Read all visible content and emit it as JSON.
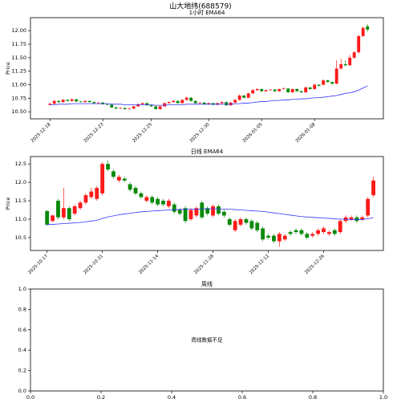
{
  "title": "山大地纬(688579)",
  "chart_data": [
    {
      "type": "candlestick",
      "title": "1小时 EMA64",
      "ylabel": "Price",
      "up_color": "#ff1a1a",
      "down_color": "#0a8a0a",
      "ema_color": "#3333ff",
      "xlim": [
        -4.4,
        75.6
      ],
      "ylim": [
        10.37,
        12.24
      ],
      "xticks": [
        {
          "value": 0,
          "label": "2025-12-18"
        },
        {
          "value": 12,
          "label": "2025-12-23"
        },
        {
          "value": 23,
          "label": "2025-12-25"
        },
        {
          "value": 36,
          "label": "2025-12-30"
        },
        {
          "value": 48,
          "label": "2026-01-05"
        },
        {
          "value": 60,
          "label": "2026-01-08"
        }
      ],
      "yticks": [
        {
          "value": 10.5,
          "label": "10.50"
        },
        10.75,
        {
          "value": 11,
          "label": "11.00"
        },
        11.25,
        {
          "value": 11.5,
          "label": "11.50"
        },
        11.75,
        {
          "value": 12,
          "label": "12.00"
        }
      ],
      "ohlc": [
        [
          10.63,
          10.66,
          10.62,
          10.65
        ],
        [
          10.65,
          10.72,
          10.64,
          10.7
        ],
        [
          10.7,
          10.71,
          10.66,
          10.68
        ],
        [
          10.68,
          10.74,
          10.67,
          10.72
        ],
        [
          10.72,
          10.73,
          10.69,
          10.7
        ],
        [
          10.7,
          10.75,
          10.69,
          10.73
        ],
        [
          10.73,
          10.74,
          10.68,
          10.69
        ],
        [
          10.69,
          10.7,
          10.67,
          10.68
        ],
        [
          10.68,
          10.71,
          10.67,
          10.7
        ],
        [
          10.7,
          10.71,
          10.67,
          10.68
        ],
        [
          10.68,
          10.69,
          10.65,
          10.66
        ],
        [
          10.66,
          10.68,
          10.65,
          10.67
        ],
        [
          10.67,
          10.68,
          10.63,
          10.64
        ],
        [
          10.64,
          10.65,
          10.62,
          10.63
        ],
        [
          10.63,
          10.64,
          10.57,
          10.58
        ],
        [
          10.58,
          10.59,
          10.55,
          10.56
        ],
        [
          10.56,
          10.58,
          10.55,
          10.57
        ],
        [
          10.57,
          10.58,
          10.54,
          10.55
        ],
        [
          10.55,
          10.57,
          10.54,
          10.56
        ],
        [
          10.56,
          10.61,
          10.55,
          10.6
        ],
        [
          10.6,
          10.65,
          10.59,
          10.64
        ],
        [
          10.64,
          10.67,
          10.63,
          10.66
        ],
        [
          10.66,
          10.67,
          10.61,
          10.62
        ],
        [
          10.62,
          10.63,
          10.59,
          10.6
        ],
        [
          10.6,
          10.61,
          10.54,
          10.55
        ],
        [
          10.55,
          10.61,
          10.54,
          10.6
        ],
        [
          10.6,
          10.67,
          10.59,
          10.66
        ],
        [
          10.66,
          10.69,
          10.65,
          10.68
        ],
        [
          10.68,
          10.72,
          10.67,
          10.7
        ],
        [
          10.7,
          10.71,
          10.65,
          10.66
        ],
        [
          10.66,
          10.73,
          10.65,
          10.72
        ],
        [
          10.72,
          10.78,
          10.71,
          10.76
        ],
        [
          10.76,
          10.77,
          10.69,
          10.7
        ],
        [
          10.7,
          10.71,
          10.65,
          10.66
        ],
        [
          10.66,
          10.68,
          10.65,
          10.67
        ],
        [
          10.67,
          10.68,
          10.63,
          10.64
        ],
        [
          10.64,
          10.67,
          10.63,
          10.66
        ],
        [
          10.66,
          10.67,
          10.62,
          10.63
        ],
        [
          10.63,
          10.67,
          10.62,
          10.66
        ],
        [
          10.66,
          10.69,
          10.65,
          10.68
        ],
        [
          10.68,
          10.69,
          10.61,
          10.62
        ],
        [
          10.62,
          10.68,
          10.61,
          10.67
        ],
        [
          10.67,
          10.73,
          10.66,
          10.72
        ],
        [
          10.72,
          10.82,
          10.71,
          10.8
        ],
        [
          10.8,
          10.81,
          10.75,
          10.76
        ],
        [
          10.76,
          10.85,
          10.75,
          10.84
        ],
        [
          10.84,
          10.92,
          10.83,
          10.9
        ],
        [
          10.9,
          10.94,
          10.89,
          10.92
        ],
        [
          10.92,
          10.93,
          10.87,
          10.88
        ],
        [
          10.88,
          10.91,
          10.87,
          10.9
        ],
        [
          10.9,
          10.92,
          10.89,
          10.91
        ],
        [
          10.91,
          10.92,
          10.87,
          10.88
        ],
        [
          10.88,
          10.93,
          10.87,
          10.92
        ],
        [
          10.92,
          10.95,
          10.91,
          10.93
        ],
        [
          10.93,
          10.94,
          10.85,
          10.86
        ],
        [
          10.86,
          10.93,
          10.85,
          10.92
        ],
        [
          10.92,
          10.93,
          10.87,
          10.88
        ],
        [
          10.88,
          10.89,
          10.85,
          10.86
        ],
        [
          10.86,
          10.97,
          10.85,
          10.95
        ],
        [
          10.95,
          10.96,
          10.91,
          10.92
        ],
        [
          10.92,
          11.02,
          10.91,
          11.0
        ],
        [
          11.0,
          11.01,
          10.97,
          10.98
        ],
        [
          11.0,
          11.1,
          10.99,
          11.08
        ],
        [
          11.08,
          11.09,
          11.04,
          11.05
        ],
        [
          11.05,
          11.06,
          11.0,
          11.02
        ],
        [
          11.02,
          11.45,
          11.01,
          11.3
        ],
        [
          11.3,
          11.48,
          11.28,
          11.38
        ],
        [
          11.38,
          11.45,
          11.34,
          11.36
        ],
        [
          11.36,
          11.55,
          11.35,
          11.5
        ],
        [
          11.5,
          11.62,
          11.48,
          11.6
        ],
        [
          11.6,
          11.92,
          11.58,
          11.9
        ],
        [
          11.9,
          12.08,
          11.88,
          12.05
        ],
        [
          12.08,
          12.12,
          11.98,
          12.02
        ]
      ],
      "ema_values": [
        10.63,
        10.63,
        10.64,
        10.64,
        10.64,
        10.65,
        10.65,
        10.65,
        10.65,
        10.65,
        10.65,
        10.65,
        10.65,
        10.65,
        10.64,
        10.64,
        10.64,
        10.63,
        10.63,
        10.63,
        10.63,
        10.63,
        10.63,
        10.63,
        10.62,
        10.62,
        10.62,
        10.63,
        10.63,
        10.63,
        10.63,
        10.64,
        10.64,
        10.64,
        10.64,
        10.64,
        10.64,
        10.64,
        10.64,
        10.64,
        10.64,
        10.64,
        10.65,
        10.65,
        10.66,
        10.66,
        10.67,
        10.68,
        10.69,
        10.69,
        10.7,
        10.71,
        10.71,
        10.72,
        10.72,
        10.73,
        10.73,
        10.74,
        10.74,
        10.75,
        10.76,
        10.76,
        10.77,
        10.78,
        10.79,
        10.8,
        10.82,
        10.84,
        10.85,
        10.87,
        10.9,
        10.94,
        10.98
      ]
    },
    {
      "type": "candlestick",
      "title": "日线 EMA64",
      "ylabel": "Price",
      "up_color": "#ff1a1a",
      "down_color": "#0a8a0a",
      "ema_color": "#3333ff",
      "xlim": [
        -3.0,
        60.8
      ],
      "ylim": [
        10.15,
        12.7
      ],
      "xticks": [
        {
          "value": 0,
          "label": "2025-10-17"
        },
        {
          "value": 10,
          "label": "2025-10-31"
        },
        {
          "value": 20,
          "label": "2025-11-14"
        },
        {
          "value": 30,
          "label": "2025-11-28"
        },
        {
          "value": 40,
          "label": "2025-12-12"
        },
        {
          "value": 50,
          "label": "2025-12-26"
        }
      ],
      "yticks": [
        10.5,
        {
          "value": 11,
          "label": "11.0"
        },
        11.5,
        {
          "value": 12,
          "label": "12.0"
        },
        12.5
      ],
      "ohlc": [
        [
          11.22,
          11.25,
          10.82,
          10.85
        ],
        [
          10.95,
          11.12,
          10.92,
          11.1
        ],
        [
          11.5,
          11.55,
          11.0,
          11.05
        ],
        [
          11.05,
          11.85,
          11.0,
          11.3
        ],
        [
          11.3,
          11.35,
          10.95,
          11.0
        ],
        [
          11.15,
          11.4,
          11.1,
          11.35
        ],
        [
          11.3,
          11.5,
          11.25,
          11.45
        ],
        [
          11.45,
          11.7,
          11.4,
          11.65
        ],
        [
          11.6,
          11.85,
          11.55,
          11.75
        ],
        [
          11.55,
          11.9,
          11.5,
          11.85
        ],
        [
          11.7,
          12.55,
          11.65,
          12.5
        ],
        [
          12.5,
          12.6,
          12.3,
          12.35
        ],
        [
          12.3,
          12.35,
          12.1,
          12.15
        ],
        [
          12.05,
          12.2,
          12.0,
          12.15
        ],
        [
          12.1,
          12.15,
          12.0,
          12.05
        ],
        [
          11.95,
          12.0,
          11.75,
          11.8
        ],
        [
          11.85,
          11.9,
          11.65,
          11.7
        ],
        [
          11.7,
          11.75,
          11.55,
          11.6
        ],
        [
          11.5,
          11.65,
          11.45,
          11.6
        ],
        [
          11.6,
          11.65,
          11.4,
          11.45
        ],
        [
          11.55,
          11.6,
          11.35,
          11.4
        ],
        [
          11.5,
          11.55,
          11.35,
          11.4
        ],
        [
          11.35,
          11.55,
          11.3,
          11.5
        ],
        [
          11.4,
          11.45,
          11.15,
          11.2
        ],
        [
          11.25,
          11.3,
          11.1,
          11.15
        ],
        [
          11.3,
          11.35,
          10.9,
          10.95
        ],
        [
          11.0,
          11.3,
          10.95,
          11.25
        ],
        [
          11.1,
          11.35,
          11.05,
          11.3
        ],
        [
          11.45,
          11.5,
          11.0,
          11.05
        ],
        [
          11.3,
          11.35,
          11.1,
          11.15
        ],
        [
          11.1,
          11.4,
          11.05,
          11.35
        ],
        [
          11.35,
          11.4,
          11.1,
          11.15
        ],
        [
          11.2,
          11.25,
          11.05,
          11.1
        ],
        [
          11.0,
          11.05,
          10.8,
          10.85
        ],
        [
          10.7,
          11.0,
          10.65,
          10.95
        ],
        [
          10.85,
          11.05,
          10.8,
          11.0
        ],
        [
          11.0,
          11.05,
          10.85,
          10.9
        ],
        [
          10.95,
          11.0,
          10.7,
          10.75
        ],
        [
          10.9,
          10.95,
          10.65,
          10.7
        ],
        [
          10.75,
          10.8,
          10.4,
          10.45
        ],
        [
          10.55,
          10.6,
          10.45,
          10.5
        ],
        [
          10.55,
          10.6,
          10.35,
          10.4
        ],
        [
          10.4,
          10.65,
          10.25,
          10.6
        ],
        [
          10.45,
          10.6,
          10.4,
          10.55
        ],
        [
          10.65,
          10.7,
          10.55,
          10.6
        ],
        [
          10.7,
          10.75,
          10.6,
          10.65
        ],
        [
          10.7,
          10.75,
          10.55,
          10.6
        ],
        [
          10.6,
          10.65,
          10.45,
          10.5
        ],
        [
          10.55,
          10.65,
          10.5,
          10.6
        ],
        [
          10.6,
          10.75,
          10.55,
          10.7
        ],
        [
          10.65,
          10.8,
          10.6,
          10.75
        ],
        [
          10.6,
          10.7,
          10.55,
          10.65
        ],
        [
          10.7,
          10.75,
          10.55,
          10.6
        ],
        [
          10.65,
          11.0,
          10.6,
          10.95
        ],
        [
          10.95,
          11.1,
          10.9,
          11.05
        ],
        [
          11.0,
          11.1,
          10.95,
          11.05
        ],
        [
          11.05,
          11.1,
          10.9,
          10.95
        ],
        [
          11.0,
          11.1,
          10.95,
          11.05
        ],
        [
          11.1,
          11.6,
          11.05,
          11.55
        ],
        [
          11.65,
          12.15,
          11.6,
          12.05
        ]
      ],
      "ema_values": [
        10.85,
        10.86,
        10.87,
        10.88,
        10.89,
        10.9,
        10.91,
        10.93,
        10.95,
        10.97,
        11.02,
        11.06,
        11.09,
        11.12,
        11.14,
        11.16,
        11.18,
        11.2,
        11.21,
        11.22,
        11.23,
        11.24,
        11.25,
        11.26,
        11.26,
        11.27,
        11.27,
        11.27,
        11.28,
        11.28,
        11.28,
        11.28,
        11.27,
        11.27,
        11.26,
        11.25,
        11.24,
        11.23,
        11.22,
        11.21,
        11.19,
        11.17,
        11.15,
        11.13,
        11.11,
        11.09,
        11.07,
        11.06,
        11.05,
        11.04,
        11.03,
        11.02,
        11.01,
        11.0,
        11.0,
        10.99,
        10.99,
        10.99,
        11.01,
        11.04
      ]
    },
    {
      "type": "empty",
      "title": "周线",
      "annotation": "周线数据不足",
      "xlim": [
        0,
        1
      ],
      "ylim": [
        0,
        1
      ],
      "xticks": [
        {
          "value": 0,
          "label": "0.0"
        },
        0.2,
        0.4,
        0.6,
        0.8,
        {
          "value": 1,
          "label": "1.0"
        }
      ],
      "yticks": [
        {
          "value": 0,
          "label": "0.0"
        },
        0.2,
        0.4,
        0.6,
        0.8,
        {
          "value": 1,
          "label": "1.0"
        }
      ]
    }
  ]
}
